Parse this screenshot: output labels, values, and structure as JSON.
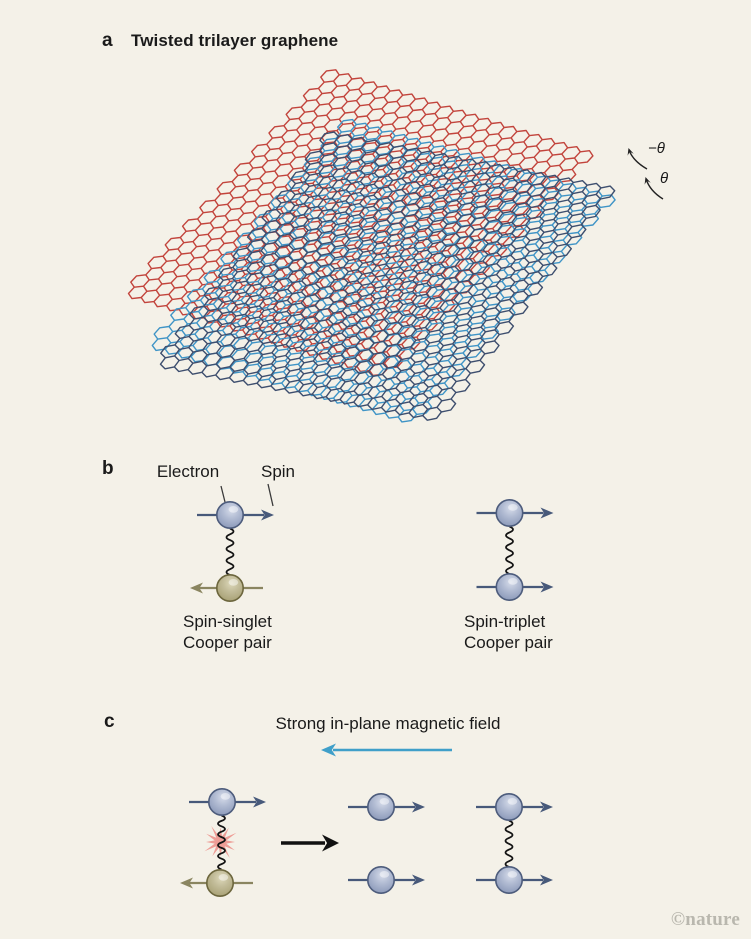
{
  "panel_a": {
    "label": "a",
    "title": "Twisted trilayer graphene",
    "layers": [
      {
        "name": "top layer",
        "color": "#c2443c",
        "rotation_label": "−θ"
      },
      {
        "name": "middle layer",
        "color": "#3d4e6e",
        "rotation_label": "θ"
      },
      {
        "name": "bottom layer",
        "color": "#3f94c6"
      }
    ]
  },
  "panel_b": {
    "label": "b",
    "electron_label": "Electron",
    "spin_label": "Spin",
    "singlet_caption": "Spin-singlet\nCooper pair",
    "triplet_caption": "Spin-triplet\nCooper pair"
  },
  "panel_c": {
    "label": "c",
    "field_label": "Strong in-plane magnetic field"
  },
  "watermark": "©nature",
  "colors": {
    "background": "#f4f1e8",
    "electron_fill": "#9aa7c4",
    "electron_outline": "#4d5c7c",
    "electron_arrow": "#47597a",
    "olive_fill": "#b3ad8a",
    "olive_outline": "#6c663d",
    "olive_arrow": "#8a8560",
    "wavy_line": "#141414",
    "pair_breaking_burst": "#ee9d96",
    "field_arrow": "#3f9fc9",
    "transition_arrow": "#111111",
    "leader_line": "#3a3a3a",
    "rotation_arrow": "#222222"
  }
}
